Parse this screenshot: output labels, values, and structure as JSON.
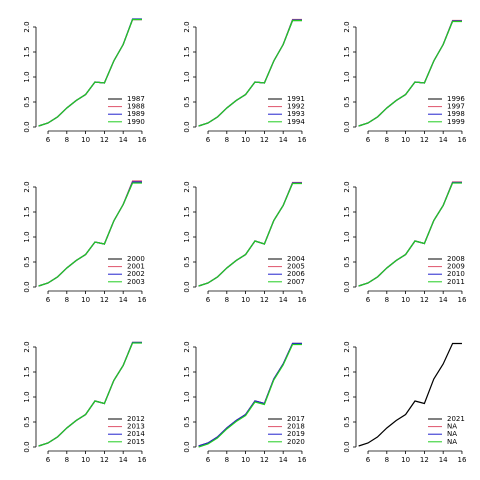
{
  "chart_data": [
    {
      "type": "line",
      "x": [
        5,
        6,
        7,
        8,
        9,
        10,
        11,
        12,
        13,
        14,
        15,
        16
      ],
      "xlim": [
        4.72,
        16.43
      ],
      "ylim": [
        -0.08,
        2.24
      ],
      "xticks": [
        6,
        8,
        10,
        12,
        14,
        16
      ],
      "yticks": [
        {
          "value": 0,
          "label": "0.0"
        },
        {
          "value": 0.5,
          "label": "0.5"
        },
        {
          "value": 1,
          "label": "1.0"
        },
        {
          "value": 1.5,
          "label": "1.5"
        },
        {
          "value": 2,
          "label": "2.0"
        }
      ],
      "series": [
        {
          "name": "1987",
          "color": "#000000",
          "values": [
            0.02,
            0.08,
            0.2,
            0.38,
            0.53,
            0.65,
            0.9,
            0.88,
            1.32,
            1.65,
            2.15,
            2.15
          ]
        },
        {
          "name": "1988",
          "color": "#df536b",
          "values": [
            0.02,
            0.08,
            0.2,
            0.38,
            0.53,
            0.65,
            0.9,
            0.88,
            1.32,
            1.65,
            2.15,
            2.15
          ]
        },
        {
          "name": "1989",
          "color": "#2222cc",
          "values": [
            0.02,
            0.08,
            0.2,
            0.38,
            0.53,
            0.65,
            0.9,
            0.88,
            1.32,
            1.65,
            2.16,
            2.16
          ]
        },
        {
          "name": "1990",
          "color": "#22cc22",
          "values": [
            0.02,
            0.08,
            0.2,
            0.38,
            0.53,
            0.65,
            0.9,
            0.88,
            1.32,
            1.65,
            2.15,
            2.15
          ]
        }
      ]
    },
    {
      "type": "line",
      "x": [
        5,
        6,
        7,
        8,
        9,
        10,
        11,
        12,
        13,
        14,
        15,
        16
      ],
      "xlim": [
        4.72,
        16.43
      ],
      "ylim": [
        -0.08,
        2.24
      ],
      "xticks": [
        6,
        8,
        10,
        12,
        14,
        16
      ],
      "yticks": [
        {
          "value": 0,
          "label": "0.0"
        },
        {
          "value": 0.5,
          "label": "0.5"
        },
        {
          "value": 1,
          "label": "1.0"
        },
        {
          "value": 1.5,
          "label": "1.5"
        },
        {
          "value": 2,
          "label": "2.0"
        }
      ],
      "series": [
        {
          "name": "1991",
          "color": "#000000",
          "values": [
            0.02,
            0.08,
            0.2,
            0.38,
            0.53,
            0.65,
            0.9,
            0.88,
            1.32,
            1.65,
            2.13,
            2.13
          ]
        },
        {
          "name": "1992",
          "color": "#df536b",
          "values": [
            0.02,
            0.08,
            0.2,
            0.38,
            0.53,
            0.65,
            0.9,
            0.88,
            1.32,
            1.65,
            2.15,
            2.15
          ]
        },
        {
          "name": "1993",
          "color": "#2222cc",
          "values": [
            0.02,
            0.08,
            0.2,
            0.38,
            0.53,
            0.65,
            0.9,
            0.88,
            1.32,
            1.65,
            2.14,
            2.14
          ]
        },
        {
          "name": "1994",
          "color": "#22cc22",
          "values": [
            0.02,
            0.08,
            0.2,
            0.38,
            0.53,
            0.65,
            0.9,
            0.88,
            1.32,
            1.65,
            2.13,
            2.13
          ]
        }
      ]
    },
    {
      "type": "line",
      "x": [
        5,
        6,
        7,
        8,
        9,
        10,
        11,
        12,
        13,
        14,
        15,
        16
      ],
      "xlim": [
        4.72,
        16.43
      ],
      "ylim": [
        -0.08,
        2.24
      ],
      "xticks": [
        6,
        8,
        10,
        12,
        14,
        16
      ],
      "yticks": [
        {
          "value": 0,
          "label": "0.0"
        },
        {
          "value": 0.5,
          "label": "0.5"
        },
        {
          "value": 1,
          "label": "1.0"
        },
        {
          "value": 1.5,
          "label": "1.5"
        },
        {
          "value": 2,
          "label": "2.0"
        }
      ],
      "series": [
        {
          "name": "1996",
          "color": "#000000",
          "values": [
            0.02,
            0.08,
            0.2,
            0.38,
            0.53,
            0.65,
            0.9,
            0.88,
            1.32,
            1.65,
            2.12,
            2.12
          ]
        },
        {
          "name": "1997",
          "color": "#df536b",
          "values": [
            0.02,
            0.08,
            0.2,
            0.38,
            0.53,
            0.65,
            0.9,
            0.88,
            1.32,
            1.65,
            2.13,
            2.13
          ]
        },
        {
          "name": "1998",
          "color": "#2222cc",
          "values": [
            0.02,
            0.08,
            0.2,
            0.38,
            0.53,
            0.65,
            0.9,
            0.88,
            1.32,
            1.65,
            2.12,
            2.12
          ]
        },
        {
          "name": "1999",
          "color": "#22cc22",
          "values": [
            0.02,
            0.08,
            0.2,
            0.38,
            0.53,
            0.65,
            0.9,
            0.88,
            1.32,
            1.65,
            2.11,
            2.11
          ]
        }
      ]
    },
    {
      "type": "line",
      "x": [
        5,
        6,
        7,
        8,
        9,
        10,
        11,
        12,
        13,
        14,
        15,
        16
      ],
      "xlim": [
        4.72,
        16.43
      ],
      "ylim": [
        -0.08,
        2.24
      ],
      "xticks": [
        6,
        8,
        10,
        12,
        14,
        16
      ],
      "yticks": [
        {
          "value": 0,
          "label": "0.0"
        },
        {
          "value": 0.5,
          "label": "0.5"
        },
        {
          "value": 1,
          "label": "1.0"
        },
        {
          "value": 1.5,
          "label": "1.5"
        },
        {
          "value": 2,
          "label": "2.0"
        }
      ],
      "series": [
        {
          "name": "2000",
          "color": "#000000",
          "values": [
            0.02,
            0.08,
            0.2,
            0.38,
            0.53,
            0.65,
            0.9,
            0.86,
            1.32,
            1.65,
            2.09,
            2.09
          ]
        },
        {
          "name": "2001",
          "color": "#df536b",
          "values": [
            0.02,
            0.08,
            0.2,
            0.38,
            0.53,
            0.65,
            0.9,
            0.86,
            1.32,
            1.65,
            2.12,
            2.12
          ]
        },
        {
          "name": "2002",
          "color": "#2222cc",
          "values": [
            0.02,
            0.08,
            0.2,
            0.38,
            0.53,
            0.65,
            0.9,
            0.86,
            1.32,
            1.65,
            2.1,
            2.1
          ]
        },
        {
          "name": "2003",
          "color": "#22cc22",
          "values": [
            0.02,
            0.08,
            0.2,
            0.38,
            0.53,
            0.65,
            0.9,
            0.86,
            1.32,
            1.65,
            2.08,
            2.08
          ]
        }
      ]
    },
    {
      "type": "line",
      "x": [
        5,
        6,
        7,
        8,
        9,
        10,
        11,
        12,
        13,
        14,
        15,
        16
      ],
      "xlim": [
        4.72,
        16.43
      ],
      "ylim": [
        -0.08,
        2.24
      ],
      "xticks": [
        6,
        8,
        10,
        12,
        14,
        16
      ],
      "yticks": [
        {
          "value": 0,
          "label": "0.0"
        },
        {
          "value": 0.5,
          "label": "0.5"
        },
        {
          "value": 1,
          "label": "1.0"
        },
        {
          "value": 1.5,
          "label": "1.5"
        },
        {
          "value": 2,
          "label": "2.0"
        }
      ],
      "series": [
        {
          "name": "2004",
          "color": "#000000",
          "values": [
            0.02,
            0.08,
            0.2,
            0.38,
            0.53,
            0.65,
            0.92,
            0.86,
            1.33,
            1.63,
            2.08,
            2.08
          ]
        },
        {
          "name": "2005",
          "color": "#df536b",
          "values": [
            0.02,
            0.08,
            0.2,
            0.38,
            0.53,
            0.65,
            0.92,
            0.86,
            1.33,
            1.63,
            2.09,
            2.09
          ]
        },
        {
          "name": "2006",
          "color": "#2222cc",
          "values": [
            0.02,
            0.08,
            0.2,
            0.38,
            0.53,
            0.65,
            0.92,
            0.86,
            1.33,
            1.63,
            2.08,
            2.08
          ]
        },
        {
          "name": "2007",
          "color": "#22cc22",
          "values": [
            0.02,
            0.08,
            0.2,
            0.38,
            0.53,
            0.65,
            0.92,
            0.86,
            1.33,
            1.63,
            2.07,
            2.07
          ]
        }
      ]
    },
    {
      "type": "line",
      "x": [
        5,
        6,
        7,
        8,
        9,
        10,
        11,
        12,
        13,
        14,
        15,
        16
      ],
      "xlim": [
        4.72,
        16.43
      ],
      "ylim": [
        -0.08,
        2.24
      ],
      "xticks": [
        6,
        8,
        10,
        12,
        14,
        16
      ],
      "yticks": [
        {
          "value": 0,
          "label": "0.0"
        },
        {
          "value": 0.5,
          "label": "0.5"
        },
        {
          "value": 1,
          "label": "1.0"
        },
        {
          "value": 1.5,
          "label": "1.5"
        },
        {
          "value": 2,
          "label": "2.0"
        }
      ],
      "series": [
        {
          "name": "2008",
          "color": "#000000",
          "values": [
            0.02,
            0.08,
            0.2,
            0.38,
            0.53,
            0.65,
            0.92,
            0.87,
            1.33,
            1.63,
            2.09,
            2.09
          ]
        },
        {
          "name": "2009",
          "color": "#df536b",
          "values": [
            0.02,
            0.08,
            0.2,
            0.38,
            0.53,
            0.65,
            0.92,
            0.87,
            1.33,
            1.63,
            2.1,
            2.1
          ]
        },
        {
          "name": "2010",
          "color": "#2222cc",
          "values": [
            0.02,
            0.08,
            0.2,
            0.38,
            0.53,
            0.65,
            0.92,
            0.87,
            1.33,
            1.63,
            2.09,
            2.09
          ]
        },
        {
          "name": "2011",
          "color": "#22cc22",
          "values": [
            0.02,
            0.08,
            0.2,
            0.38,
            0.53,
            0.65,
            0.92,
            0.87,
            1.33,
            1.63,
            2.08,
            2.08
          ]
        }
      ]
    },
    {
      "type": "line",
      "x": [
        5,
        6,
        7,
        8,
        9,
        10,
        11,
        12,
        13,
        14,
        15,
        16
      ],
      "xlim": [
        4.72,
        16.43
      ],
      "ylim": [
        -0.08,
        2.24
      ],
      "xticks": [
        6,
        8,
        10,
        12,
        14,
        16
      ],
      "yticks": [
        {
          "value": 0,
          "label": "0.0"
        },
        {
          "value": 0.5,
          "label": "0.5"
        },
        {
          "value": 1,
          "label": "1.0"
        },
        {
          "value": 1.5,
          "label": "1.5"
        },
        {
          "value": 2,
          "label": "2.0"
        }
      ],
      "series": [
        {
          "name": "2012",
          "color": "#000000",
          "values": [
            0.02,
            0.08,
            0.2,
            0.38,
            0.53,
            0.65,
            0.92,
            0.87,
            1.33,
            1.63,
            2.09,
            2.09
          ]
        },
        {
          "name": "2013",
          "color": "#df536b",
          "values": [
            0.02,
            0.08,
            0.2,
            0.38,
            0.53,
            0.65,
            0.92,
            0.87,
            1.33,
            1.63,
            2.09,
            2.09
          ]
        },
        {
          "name": "2014",
          "color": "#2222cc",
          "values": [
            0.02,
            0.08,
            0.2,
            0.38,
            0.53,
            0.65,
            0.92,
            0.87,
            1.33,
            1.63,
            2.09,
            2.09
          ]
        },
        {
          "name": "2015",
          "color": "#22cc22",
          "values": [
            0.02,
            0.08,
            0.2,
            0.38,
            0.53,
            0.65,
            0.92,
            0.87,
            1.33,
            1.63,
            2.08,
            2.08
          ]
        }
      ]
    },
    {
      "type": "line",
      "x": [
        5,
        6,
        7,
        8,
        9,
        10,
        11,
        12,
        13,
        14,
        15,
        16
      ],
      "xlim": [
        4.72,
        16.43
      ],
      "ylim": [
        -0.08,
        2.24
      ],
      "xticks": [
        6,
        8,
        10,
        12,
        14,
        16
      ],
      "yticks": [
        {
          "value": 0,
          "label": "0.0"
        },
        {
          "value": 0.5,
          "label": "0.5"
        },
        {
          "value": 1,
          "label": "1.0"
        },
        {
          "value": 1.5,
          "label": "1.5"
        },
        {
          "value": 2,
          "label": "2.0"
        }
      ],
      "series": [
        {
          "name": "2017",
          "color": "#000000",
          "values": [
            0.02,
            0.08,
            0.2,
            0.38,
            0.53,
            0.65,
            0.92,
            0.87,
            1.36,
            1.66,
            2.07,
            2.07
          ]
        },
        {
          "name": "2018",
          "color": "#df536b",
          "values": [
            0.02,
            0.08,
            0.2,
            0.38,
            0.53,
            0.65,
            0.92,
            0.87,
            1.36,
            1.66,
            2.07,
            2.07
          ]
        },
        {
          "name": "2019",
          "color": "#2222cc",
          "values": [
            0.02,
            0.08,
            0.2,
            0.38,
            0.53,
            0.65,
            0.92,
            0.87,
            1.36,
            1.66,
            2.07,
            2.07
          ]
        },
        {
          "name": "2020",
          "color": "#22cc22",
          "values": [
            0.0,
            0.06,
            0.18,
            0.36,
            0.51,
            0.63,
            0.9,
            0.85,
            1.34,
            1.64,
            2.05,
            2.05
          ]
        }
      ]
    },
    {
      "type": "line",
      "x": [
        5,
        6,
        7,
        8,
        9,
        10,
        11,
        12,
        13,
        14,
        15,
        16
      ],
      "xlim": [
        4.72,
        16.43
      ],
      "ylim": [
        -0.08,
        2.24
      ],
      "xticks": [
        6,
        8,
        10,
        12,
        14,
        16
      ],
      "yticks": [
        {
          "value": 0,
          "label": "0.0"
        },
        {
          "value": 0.5,
          "label": "0.5"
        },
        {
          "value": 1,
          "label": "1.0"
        },
        {
          "value": 1.5,
          "label": "1.5"
        },
        {
          "value": 2,
          "label": "2.0"
        }
      ],
      "series": [
        {
          "name": "2021",
          "color": "#000000",
          "values": [
            0.02,
            0.08,
            0.2,
            0.38,
            0.53,
            0.65,
            0.92,
            0.87,
            1.36,
            1.66,
            2.07,
            2.07
          ]
        },
        {
          "name": "NA",
          "color": "#df536b",
          "values": [
            null,
            null,
            null,
            null,
            null,
            null,
            null,
            null,
            null,
            null,
            null,
            null
          ]
        },
        {
          "name": "NA",
          "color": "#2222cc",
          "values": [
            null,
            null,
            null,
            null,
            null,
            null,
            null,
            null,
            null,
            null,
            null,
            null
          ]
        },
        {
          "name": "NA",
          "color": "#22cc22",
          "values": [
            null,
            null,
            null,
            null,
            null,
            null,
            null,
            null,
            null,
            null,
            null,
            null
          ]
        }
      ]
    }
  ]
}
